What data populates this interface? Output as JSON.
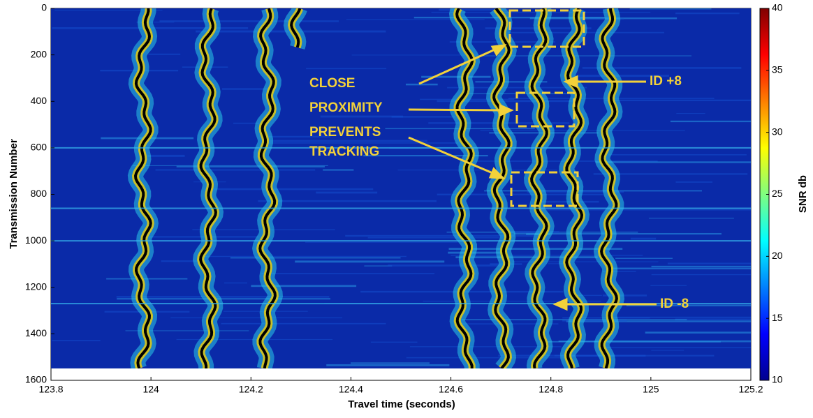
{
  "chart_data": {
    "type": "heatmap",
    "xlabel": "Travel time (seconds)",
    "ylabel": "Transmission Number",
    "xlim": [
      123.8,
      125.2
    ],
    "xticks": [
      123.8,
      124,
      124.2,
      124.4,
      124.6,
      124.8,
      125,
      125.2
    ],
    "ylim": [
      0,
      1600
    ],
    "yticks": [
      0,
      200,
      400,
      600,
      800,
      1000,
      1200,
      1400,
      1600
    ],
    "y_inverted": true,
    "colorbar": {
      "label": "SNR db",
      "lim": [
        10,
        40
      ],
      "ticks": [
        10,
        15,
        20,
        25,
        30,
        35,
        40
      ],
      "colormap": "jet"
    },
    "annotations": [
      "CLOSE",
      "PROXIMITY",
      "PREVENTS",
      "TRACKING",
      "ID +8",
      "ID -8"
    ],
    "annotation_color": "#f2d13a"
  }
}
